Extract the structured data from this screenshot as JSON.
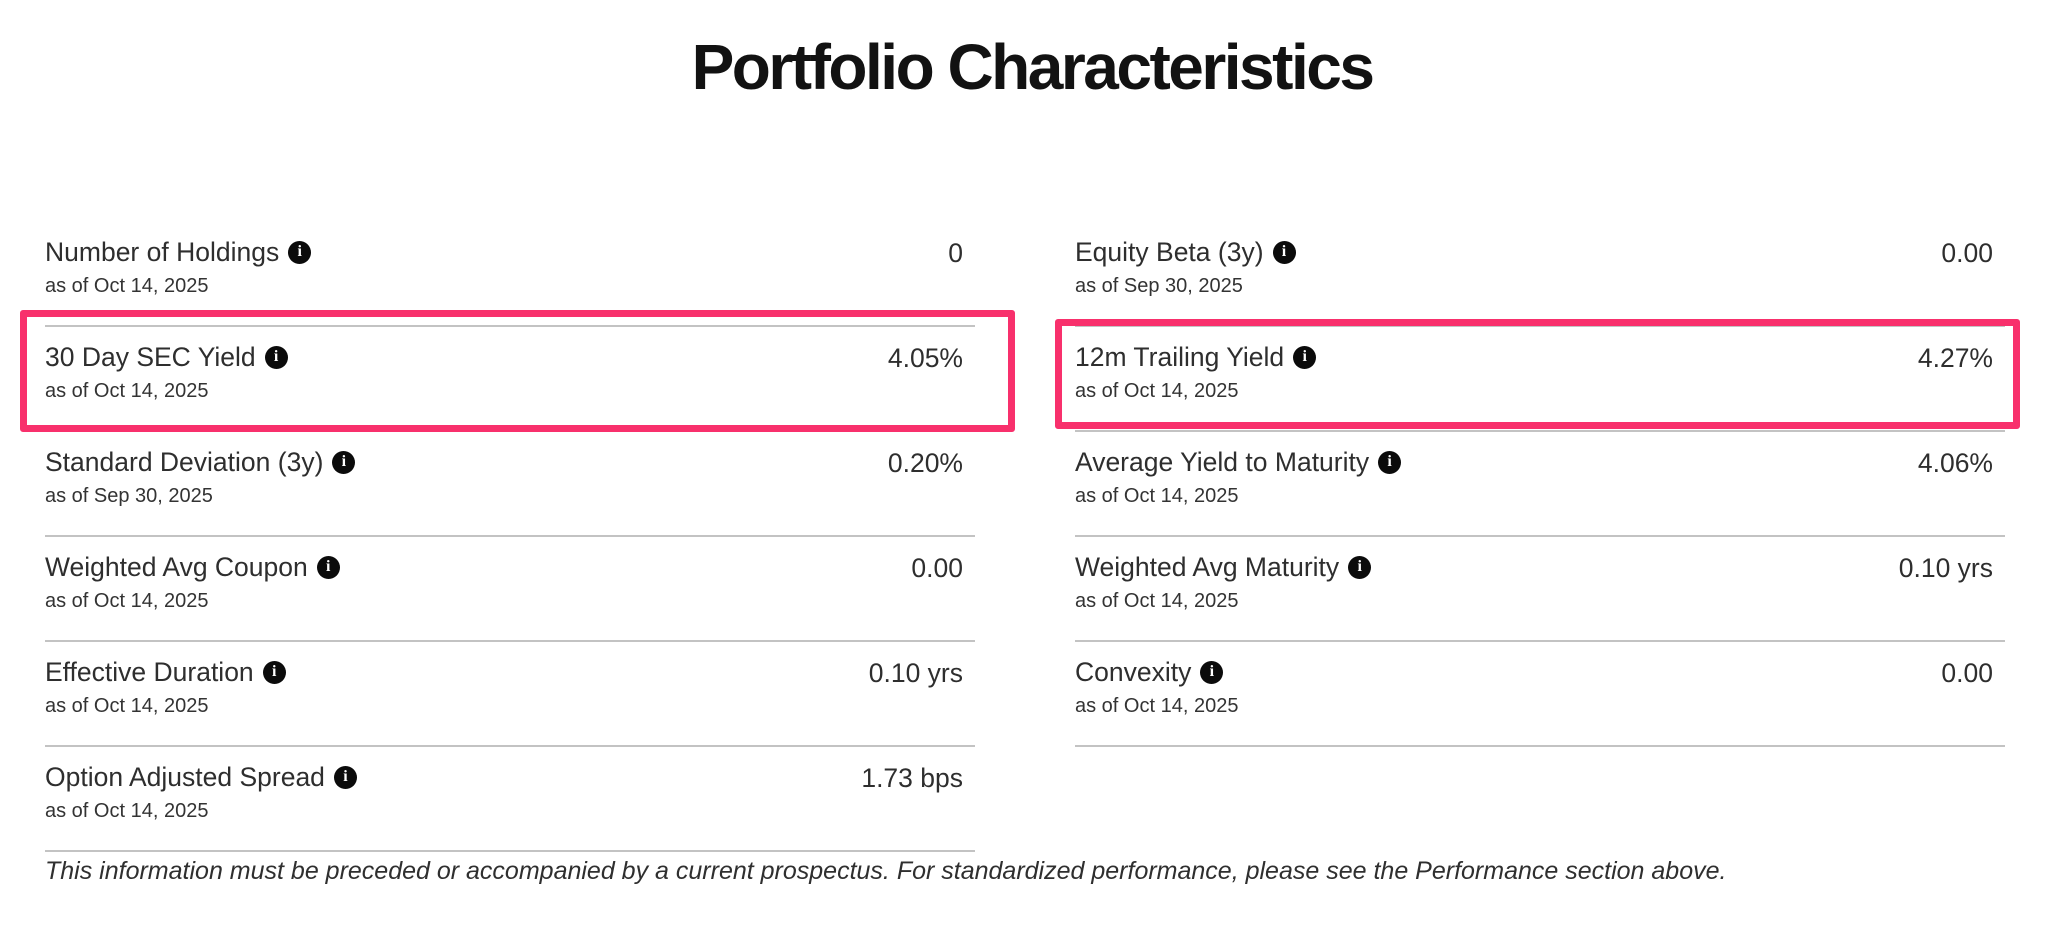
{
  "page": {
    "title": "Portfolio Characteristics",
    "footnote": "This information must be preceded or accompanied by a current prospectus. For standardized performance, please see the Performance section above."
  },
  "colors": {
    "highlight_box": "#f8306c",
    "divider": "#c3c3c3",
    "text": "#2e2e2e"
  },
  "info_icon_glyph": "i",
  "columns": {
    "left": {
      "rows": [
        {
          "label": "Number of Holdings",
          "as_of": "as of Oct 14, 2025",
          "value": "0",
          "highlighted": false
        },
        {
          "label": "30 Day SEC Yield",
          "as_of": "as of Oct 14, 2025",
          "value": "4.05%",
          "highlighted": true
        },
        {
          "label": "Standard Deviation (3y)",
          "as_of": "as of Sep 30, 2025",
          "value": "0.20%",
          "highlighted": false
        },
        {
          "label": "Weighted Avg Coupon",
          "as_of": "as of Oct 14, 2025",
          "value": "0.00",
          "highlighted": false
        },
        {
          "label": "Effective Duration",
          "as_of": "as of Oct 14, 2025",
          "value": "0.10 yrs",
          "highlighted": false
        },
        {
          "label": "Option Adjusted Spread",
          "as_of": "as of Oct 14, 2025",
          "value": "1.73 bps",
          "highlighted": false
        }
      ]
    },
    "right": {
      "rows": [
        {
          "label": "Equity Beta (3y)",
          "as_of": "as of Sep 30, 2025",
          "value": "0.00",
          "highlighted": false
        },
        {
          "label": "12m Trailing Yield",
          "as_of": "as of Oct 14, 2025",
          "value": "4.27%",
          "highlighted": true
        },
        {
          "label": "Average Yield to Maturity",
          "as_of": "as of Oct 14, 2025",
          "value": "4.06%",
          "highlighted": false
        },
        {
          "label": "Weighted Avg Maturity",
          "as_of": "as of Oct 14, 2025",
          "value": "0.10 yrs",
          "highlighted": false
        },
        {
          "label": "Convexity",
          "as_of": "as of Oct 14, 2025",
          "value": "0.00",
          "highlighted": false
        }
      ]
    }
  }
}
